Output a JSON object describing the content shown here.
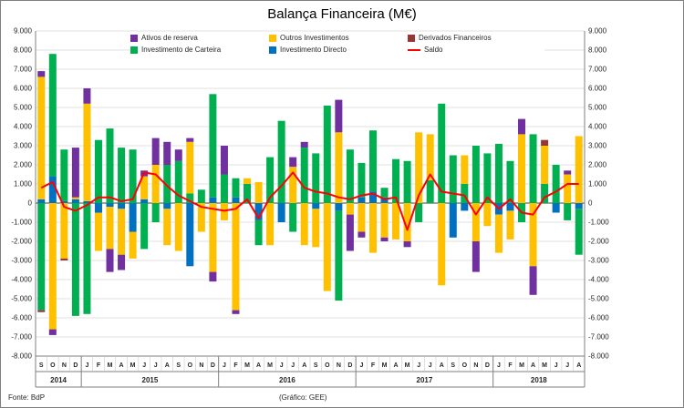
{
  "title": "Balança Financeira (M€)",
  "footer": {
    "source": "Fonte: BdP",
    "credit": "(Gráfico: GEE)"
  },
  "colors": {
    "ativos_de_reserva": "#7030A0",
    "investimento_de_carteira": "#00B050",
    "outros_investimentos": "#FFC000",
    "investimento_directo": "#0070C0",
    "derivados_financeiros": "#953735",
    "saldo": "#FF0000",
    "gridline": "#D9D9D9",
    "axis_text": "#262626"
  },
  "legend": [
    {
      "label": "Ativos de reserva",
      "color": "#7030A0",
      "type": "box"
    },
    {
      "label": "Outros Investimentos",
      "color": "#FFC000",
      "type": "box"
    },
    {
      "label": "Derivados Financeiros",
      "color": "#953735",
      "type": "box"
    },
    {
      "label": "Investimento de Carteira",
      "color": "#00B050",
      "type": "box"
    },
    {
      "label": "Investimento Directo",
      "color": "#0070C0",
      "type": "box"
    },
    {
      "label": "Saldo",
      "color": "#FF0000",
      "type": "line"
    }
  ],
  "chart_data": {
    "type": "bar",
    "stacked": true,
    "title": "Balança Financeira (M€)",
    "ylim": [
      -8000,
      9000
    ],
    "ytick_step": 1000,
    "grid": true,
    "legend_position": "top",
    "x_months": [
      "S",
      "O",
      "N",
      "D",
      "J",
      "F",
      "M",
      "A",
      "M",
      "J",
      "J",
      "A",
      "S",
      "O",
      "N",
      "D",
      "J",
      "F",
      "M",
      "A",
      "M",
      "J",
      "J",
      "A",
      "S",
      "O",
      "N",
      "D",
      "J",
      "F",
      "M",
      "A",
      "M",
      "J",
      "J",
      "A",
      "S",
      "O",
      "N",
      "D",
      "J",
      "F",
      "M",
      "A",
      "M",
      "J",
      "J",
      "A"
    ],
    "year_groups": [
      {
        "label": "2014",
        "span": 4
      },
      {
        "label": "2015",
        "span": 12
      },
      {
        "label": "2016",
        "span": 12
      },
      {
        "label": "2017",
        "span": 12
      },
      {
        "label": "2018",
        "span": 8
      }
    ],
    "series": [
      {
        "name": "Investimento Directo",
        "color": "#0070C0",
        "values": [
          200,
          1400,
          100,
          200,
          100,
          -500,
          -200,
          -300,
          -1500,
          200,
          0,
          -300,
          0,
          -3300,
          0,
          300,
          0,
          300,
          0,
          -900,
          0,
          -1000,
          0,
          0,
          -300,
          0,
          -400,
          0,
          300,
          600,
          300,
          0,
          0,
          0,
          0,
          0,
          -1800,
          -400,
          0,
          0,
          -600,
          -400,
          0,
          0,
          0,
          -500,
          0,
          -300
        ]
      },
      {
        "name": "Investimento de Carteira",
        "color": "#00B050",
        "values": [
          -5600,
          6400,
          2700,
          -5900,
          -5800,
          3300,
          3900,
          2900,
          2800,
          -2400,
          -1000,
          2000,
          2200,
          500,
          700,
          5400,
          1500,
          1000,
          1000,
          -1300,
          2400,
          4300,
          -1500,
          2900,
          2600,
          5100,
          -4700,
          2800,
          1800,
          3200,
          500,
          2300,
          2200,
          -1000,
          1200,
          5200,
          2500,
          1000,
          3000,
          2600,
          3100,
          2200,
          -1000,
          3600,
          1000,
          2000,
          -900,
          -2400
        ]
      },
      {
        "name": "Outros Investimentos",
        "color": "#FFC000",
        "values": [
          6400,
          -6600,
          -2900,
          100,
          5100,
          -2000,
          -2200,
          -2400,
          -1400,
          1200,
          2000,
          -1900,
          -2500,
          2700,
          -1500,
          -3600,
          -900,
          -5600,
          300,
          1100,
          -2200,
          0,
          1900,
          -2200,
          -2000,
          -4600,
          3700,
          -600,
          -1500,
          -2600,
          -1800,
          -1900,
          -2000,
          3700,
          2400,
          -4300,
          0,
          1500,
          -2000,
          -1200,
          -2000,
          -1500,
          3600,
          -3300,
          2000,
          0,
          1500,
          3500
        ]
      },
      {
        "name": "Ativos de reserva",
        "color": "#7030A0",
        "values": [
          300,
          -300,
          0,
          2600,
          800,
          0,
          -1200,
          -800,
          0,
          300,
          1400,
          1200,
          600,
          200,
          0,
          -500,
          1500,
          -200,
          0,
          0,
          0,
          0,
          500,
          300,
          0,
          0,
          1700,
          -1900,
          -300,
          0,
          -200,
          0,
          -300,
          0,
          0,
          0,
          0,
          0,
          -1600,
          0,
          0,
          0,
          800,
          -1500,
          0,
          0,
          200,
          0
        ]
      },
      {
        "name": "Derivados Financeiros",
        "color": "#953735",
        "values": [
          -100,
          0,
          -100,
          0,
          0,
          0,
          0,
          0,
          0,
          0,
          0,
          0,
          0,
          0,
          0,
          0,
          0,
          0,
          0,
          0,
          0,
          0,
          0,
          0,
          0,
          0,
          0,
          0,
          0,
          0,
          0,
          0,
          0,
          0,
          0,
          0,
          0,
          0,
          0,
          0,
          0,
          0,
          0,
          0,
          300,
          0,
          0,
          0
        ]
      }
    ],
    "line_series": {
      "name": "Saldo",
      "color": "#FF0000",
      "values": [
        800,
        1100,
        -200,
        -400,
        -100,
        300,
        300,
        100,
        200,
        1600,
        1500,
        900,
        400,
        100,
        -200,
        -300,
        -400,
        -300,
        200,
        -800,
        300,
        900,
        1600,
        800,
        600,
        500,
        300,
        200,
        400,
        500,
        200,
        300,
        -1400,
        400,
        1500,
        600,
        500,
        400,
        -600,
        300,
        -300,
        200,
        -500,
        -600,
        300,
        600,
        1000,
        1000
      ]
    }
  }
}
